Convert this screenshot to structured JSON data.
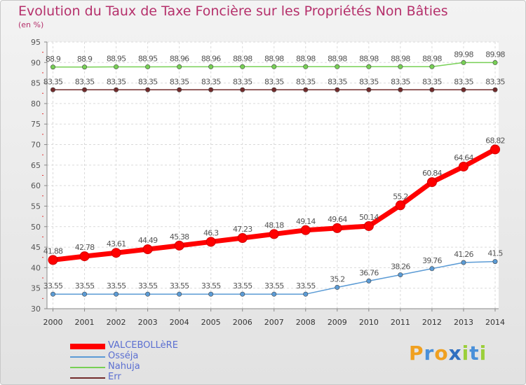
{
  "chart_data": {
    "type": "line",
    "title": "Evolution du Taux de Taxe Foncière sur les Propriétés Non Bâties",
    "ylabel": "(en %)",
    "xlabel": "",
    "ylim": [
      30,
      95
    ],
    "yticks": [
      30,
      35,
      40,
      45,
      50,
      55,
      60,
      65,
      70,
      75,
      80,
      85,
      90,
      95
    ],
    "categories": [
      "2000",
      "2001",
      "2002",
      "2003",
      "2004",
      "2005",
      "2006",
      "2007",
      "2008",
      "2009",
      "2010",
      "2011",
      "2012",
      "2013",
      "2014"
    ],
    "series": [
      {
        "name": "VALCEBOLLèRE",
        "color": "#ff0000",
        "values": [
          41.88,
          42.78,
          43.61,
          44.49,
          45.38,
          46.3,
          47.23,
          48.18,
          49.14,
          49.64,
          50.14,
          55.2,
          60.84,
          64.64,
          68.82
        ],
        "labels": [
          "41.88",
          "42.78",
          "43.61",
          "44.49",
          "45.38",
          "46.3",
          "47.23",
          "48.18",
          "49.14",
          "49.64",
          "50.14",
          "55.2",
          "60.84",
          "64.64",
          "68.82"
        ]
      },
      {
        "name": "Osséja",
        "color": "#5b9bd5",
        "values": [
          33.55,
          33.55,
          33.55,
          33.55,
          33.55,
          33.55,
          33.55,
          33.55,
          33.55,
          35.2,
          36.76,
          38.26,
          39.76,
          41.26,
          41.5
        ],
        "labels": [
          "33.55",
          "33.55",
          "33.55",
          "33.55",
          "33.55",
          "33.55",
          "33.55",
          "33.55",
          "33.55",
          "35.2",
          "36.76",
          "38.26",
          "39.76",
          "41.26",
          "41.5"
        ]
      },
      {
        "name": "Nahuja",
        "color": "#77d055",
        "values": [
          88.9,
          88.9,
          88.95,
          88.95,
          88.96,
          88.96,
          88.98,
          88.98,
          88.98,
          88.98,
          88.98,
          88.98,
          88.98,
          89.98,
          89.98
        ],
        "labels": [
          "88.9",
          "88.9",
          "88.95",
          "88.95",
          "88.96",
          "88.96",
          "88.98",
          "88.98",
          "88.98",
          "88.98",
          "88.98",
          "88.98",
          "88.98",
          "89.98",
          "89.98"
        ]
      },
      {
        "name": "Err",
        "color": "#722b2b",
        "values": [
          83.35,
          83.35,
          83.35,
          83.35,
          83.35,
          83.35,
          83.35,
          83.35,
          83.35,
          83.35,
          83.35,
          83.35,
          83.35,
          83.35,
          83.35
        ],
        "labels": [
          "83.35",
          "83.35",
          "83.35",
          "83.35",
          "83.35",
          "83.35",
          "83.35",
          "83.35",
          "83.35",
          "83.35",
          "83.35",
          "83.35",
          "83.35",
          "83.35",
          "83.35"
        ]
      }
    ],
    "legend": "bottom-left"
  },
  "logo": {
    "letters": [
      "P",
      "r",
      "o",
      "x",
      "i",
      "t",
      "i"
    ],
    "colors": [
      "#f0a020",
      "#4a90d9",
      "#f0a020",
      "#2f6fc0",
      "#9bcf3a",
      "#4a90d9",
      "#9bcf3a"
    ]
  }
}
